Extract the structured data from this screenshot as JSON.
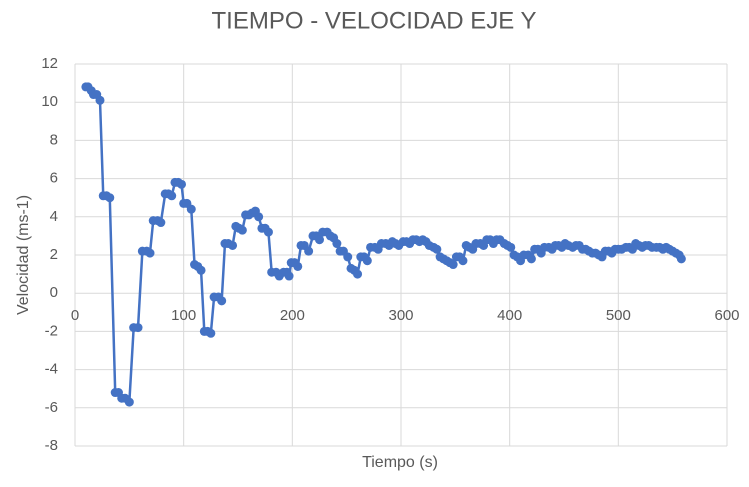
{
  "chart_data": {
    "type": "line",
    "title": "TIEMPO - VELOCIDAD EJE Y",
    "x_label": "Tiempo (s)",
    "y_label": "Velocidad (ms-1)",
    "color": "#4472c4",
    "grid": true,
    "xlim": [
      0,
      600
    ],
    "xticks": [
      0,
      100,
      200,
      300,
      400,
      500,
      600
    ],
    "ylim": [
      -8,
      12
    ],
    "yticks": [
      -8,
      -6,
      -4,
      -2,
      0,
      2,
      4,
      6,
      8,
      10,
      12
    ],
    "x": [
      10,
      12,
      15,
      17,
      20,
      23,
      26,
      29,
      32,
      37,
      40,
      43,
      46,
      50,
      54,
      58,
      62,
      66,
      69,
      72,
      76,
      79,
      83,
      86,
      89,
      92,
      95,
      98,
      100,
      103,
      107,
      110,
      113,
      116,
      119,
      122,
      125,
      128,
      132,
      135,
      138,
      141,
      145,
      148,
      151,
      154,
      157,
      160,
      163,
      166,
      169,
      172,
      175,
      178,
      181,
      185,
      188,
      192,
      195,
      197,
      199,
      202,
      205,
      208,
      211,
      215,
      219,
      222,
      225,
      228,
      232,
      235,
      238,
      241,
      244,
      247,
      251,
      254,
      257,
      260,
      263,
      266,
      269,
      272,
      276,
      279,
      282,
      286,
      289,
      292,
      295,
      298,
      302,
      305,
      308,
      311,
      314,
      317,
      320,
      323,
      326,
      330,
      333,
      336,
      339,
      342,
      345,
      348,
      351,
      354,
      357,
      360,
      363,
      366,
      369,
      373,
      376,
      379,
      382,
      385,
      388,
      391,
      395,
      398,
      401,
      404,
      407,
      410,
      413,
      417,
      420,
      423,
      426,
      429,
      432,
      436,
      439,
      442,
      445,
      448,
      451,
      454,
      458,
      461,
      464,
      467,
      470,
      473,
      476,
      479,
      482,
      485,
      488,
      491,
      494,
      497,
      500,
      503,
      507,
      510,
      513,
      516,
      519,
      522,
      525,
      528,
      531,
      535,
      538,
      541,
      544,
      547,
      550,
      553,
      556,
      558
    ],
    "values": [
      10.8,
      10.8,
      10.6,
      10.4,
      10.4,
      10.1,
      5.1,
      5.1,
      5.0,
      -5.2,
      -5.2,
      -5.5,
      -5.5,
      -5.7,
      -1.8,
      -1.8,
      2.2,
      2.2,
      2.1,
      3.8,
      3.8,
      3.7,
      5.2,
      5.2,
      5.1,
      5.8,
      5.8,
      5.7,
      4.7,
      4.7,
      4.4,
      1.5,
      1.4,
      1.2,
      -2.0,
      -2.0,
      -2.1,
      -0.2,
      -0.2,
      -0.4,
      2.6,
      2.6,
      2.5,
      3.5,
      3.4,
      3.3,
      4.1,
      4.1,
      4.2,
      4.3,
      4.0,
      3.4,
      3.4,
      3.2,
      1.1,
      1.1,
      0.9,
      1.1,
      1.1,
      0.9,
      1.6,
      1.6,
      1.4,
      2.5,
      2.5,
      2.2,
      3.0,
      3.0,
      2.8,
      3.2,
      3.2,
      3.0,
      2.9,
      2.6,
      2.2,
      2.2,
      1.9,
      1.3,
      1.2,
      1.0,
      1.9,
      1.9,
      1.7,
      2.4,
      2.4,
      2.3,
      2.6,
      2.6,
      2.5,
      2.7,
      2.6,
      2.5,
      2.7,
      2.7,
      2.6,
      2.8,
      2.8,
      2.7,
      2.8,
      2.7,
      2.5,
      2.4,
      2.3,
      1.9,
      1.8,
      1.7,
      1.6,
      1.5,
      1.9,
      1.9,
      1.7,
      2.5,
      2.4,
      2.3,
      2.6,
      2.6,
      2.5,
      2.8,
      2.8,
      2.6,
      2.8,
      2.8,
      2.6,
      2.5,
      2.4,
      2.0,
      1.9,
      1.7,
      2.0,
      2.0,
      1.8,
      2.3,
      2.3,
      2.1,
      2.4,
      2.4,
      2.3,
      2.5,
      2.5,
      2.4,
      2.6,
      2.5,
      2.4,
      2.5,
      2.5,
      2.3,
      2.3,
      2.2,
      2.1,
      2.1,
      2.0,
      1.9,
      2.2,
      2.2,
      2.1,
      2.3,
      2.3,
      2.3,
      2.4,
      2.4,
      2.3,
      2.6,
      2.5,
      2.4,
      2.5,
      2.5,
      2.4,
      2.4,
      2.4,
      2.3,
      2.4,
      2.3,
      2.2,
      2.1,
      2.0,
      1.8
    ]
  }
}
